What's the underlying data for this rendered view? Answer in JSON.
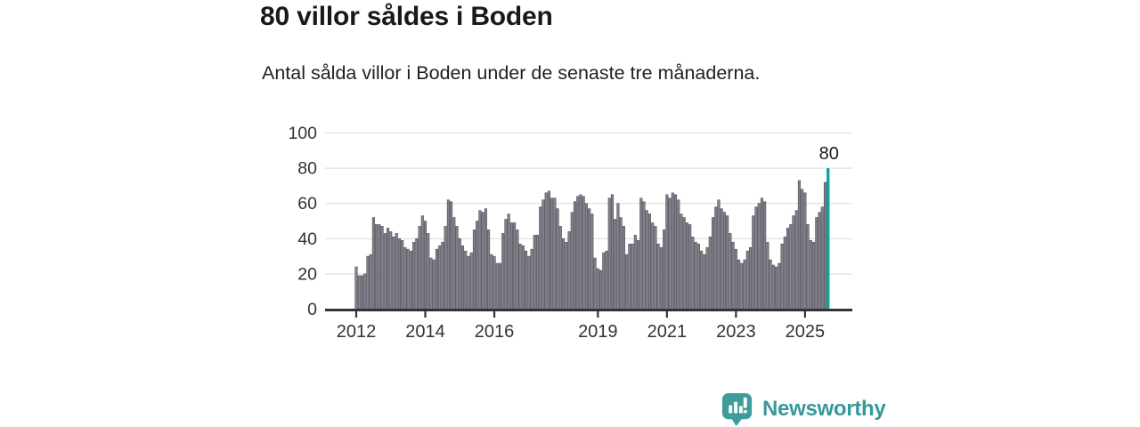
{
  "header": {
    "title": "80 villor såldes i Boden",
    "subtitle": "Antal sålda villor i Boden under de senaste tre månaderna."
  },
  "footer": {
    "logo_text": "Newsworthy",
    "logo_icon": "newsworthy-speech-bubble-bar-chart-icon"
  },
  "colors": {
    "bar": "#82828c",
    "bar_stroke": "#4f4f59",
    "highlight": "#0ba5a1",
    "grid": "#dedede",
    "axis": "#333333",
    "text": "#333333",
    "annotation": "#1d1d1d",
    "logo_teal": "#3f9c9c"
  },
  "chart_data": {
    "type": "bar",
    "title": "80 villor såldes i Boden",
    "subtitle": "Antal sålda villor i Boden under de senaste tre månaderna.",
    "series_name": "Antal sålda villor (rullande tre månader)",
    "x_start_month": "2012-01",
    "x_end_month": "2025-09",
    "x_frequency": "monthly",
    "values": [
      24,
      19,
      19,
      20,
      30,
      31,
      52,
      48,
      48,
      47,
      43,
      46,
      44,
      41,
      43,
      40,
      39,
      35,
      34,
      33,
      38,
      40,
      47,
      53,
      50,
      43,
      29,
      28,
      34,
      36,
      38,
      47,
      62,
      61,
      52,
      47,
      40,
      36,
      33,
      30,
      32,
      45,
      50,
      56,
      55,
      57,
      45,
      31,
      30,
      26,
      26,
      43,
      51,
      54,
      49,
      49,
      45,
      37,
      36,
      33,
      30,
      34,
      42,
      42,
      58,
      62,
      66,
      67,
      63,
      63,
      57,
      47,
      40,
      38,
      44,
      55,
      61,
      64,
      65,
      64,
      60,
      57,
      54,
      29,
      23,
      22,
      32,
      33,
      63,
      65,
      51,
      60,
      52,
      47,
      31,
      37,
      37,
      42,
      39,
      63,
      61,
      56,
      54,
      49,
      47,
      37,
      35,
      45,
      65,
      63,
      66,
      65,
      62,
      54,
      52,
      49,
      48,
      41,
      38,
      37,
      33,
      31,
      35,
      41,
      52,
      58,
      62,
      57,
      55,
      53,
      43,
      38,
      34,
      28,
      26,
      28,
      33,
      35,
      53,
      58,
      60,
      63,
      61,
      38,
      28,
      25,
      24,
      26,
      37,
      41,
      46,
      48,
      53,
      56,
      73,
      68,
      66,
      48,
      39,
      38,
      52,
      55,
      58,
      72,
      80
    ],
    "ylim": [
      0,
      100
    ],
    "yticks": [
      0,
      20,
      40,
      60,
      80,
      100
    ],
    "xticks": [
      {
        "label": "2012",
        "month_index": 0
      },
      {
        "label": "2014",
        "month_index": 24
      },
      {
        "label": "2016",
        "month_index": 48
      },
      {
        "label": "2019",
        "month_index": 84
      },
      {
        "label": "2021",
        "month_index": 108
      },
      {
        "label": "2023",
        "month_index": 132
      },
      {
        "label": "2025",
        "month_index": 156
      }
    ],
    "grid": "horizontal",
    "legend": "none",
    "highlight": {
      "index": 164,
      "value": 80,
      "label": "80"
    }
  }
}
